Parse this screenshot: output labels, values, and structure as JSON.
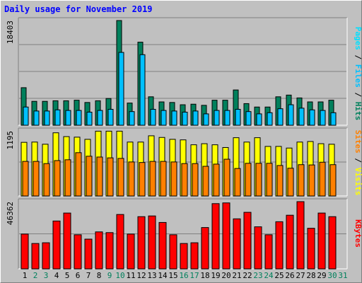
{
  "title": "Daily usage for November 2019",
  "colors": {
    "title": "#0000ff",
    "hits": "#00805c",
    "files": "#00c0ff",
    "pages": "#00e0ff",
    "visits": "#ffff00",
    "sites": "#ff8000",
    "kbytes": "#ff0000",
    "weekend_day": "#00805c",
    "weekday": "#000000"
  },
  "chart_data": [
    {
      "type": "bar",
      "title": "Pages / Files / Hits",
      "legend": [
        {
          "name": "Pages",
          "color": "#00e0ff"
        },
        {
          "name": "Files",
          "color": "#00c0ff"
        },
        {
          "name": "Hits",
          "color": "#00805c"
        }
      ],
      "ymax_label": "18403",
      "ylim": [
        0,
        18403
      ],
      "categories": [
        "1",
        "2",
        "3",
        "4",
        "5",
        "6",
        "7",
        "8",
        "9",
        "10",
        "11",
        "12",
        "13",
        "14",
        "15",
        "16",
        "17",
        "18",
        "19",
        "20",
        "21",
        "22",
        "23",
        "24",
        "25",
        "26",
        "27",
        "28",
        "29",
        "30",
        "31"
      ],
      "series": [
        {
          "name": "Hits",
          "values": [
            6600,
            4200,
            4200,
            4300,
            4300,
            4400,
            4000,
            4300,
            4700,
            18403,
            3900,
            14600,
            5000,
            4100,
            4000,
            3600,
            3700,
            3500,
            4400,
            4400,
            6200,
            3800,
            3200,
            3200,
            5000,
            5300,
            4800,
            4100,
            4100,
            4400,
            0
          ]
        },
        {
          "name": "Files",
          "values": [
            3200,
            2500,
            2500,
            2700,
            2600,
            2600,
            2300,
            2600,
            2800,
            12800,
            2400,
            12400,
            2800,
            2600,
            2500,
            2300,
            2500,
            2000,
            2600,
            2600,
            2800,
            2400,
            2000,
            2200,
            2900,
            3600,
            3000,
            2700,
            2600,
            2200,
            0
          ]
        }
      ]
    },
    {
      "type": "bar",
      "title": "Sites / Visits",
      "legend": [
        {
          "name": "Sites",
          "color": "#ff8000"
        },
        {
          "name": "Visits",
          "color": "#ffff00"
        }
      ],
      "ymax_label": "1195",
      "ylim": [
        0,
        1195
      ],
      "categories": [
        "1",
        "2",
        "3",
        "4",
        "5",
        "6",
        "7",
        "8",
        "9",
        "10",
        "11",
        "12",
        "13",
        "14",
        "15",
        "16",
        "17",
        "18",
        "19",
        "20",
        "21",
        "22",
        "23",
        "24",
        "25",
        "26",
        "27",
        "28",
        "29",
        "30",
        "31"
      ],
      "series": [
        {
          "name": "Visits",
          "values": [
            985,
            990,
            950,
            1160,
            1090,
            1080,
            1040,
            1190,
            1190,
            1190,
            990,
            990,
            1105,
            1075,
            1040,
            1030,
            940,
            960,
            940,
            890,
            1070,
            990,
            1070,
            910,
            910,
            880,
            990,
            1000,
            960,
            950,
            0
          ]
        },
        {
          "name": "Sites",
          "values": [
            635,
            635,
            595,
            650,
            665,
            795,
            730,
            715,
            700,
            690,
            625,
            615,
            635,
            635,
            625,
            595,
            595,
            545,
            585,
            675,
            505,
            600,
            600,
            600,
            560,
            510,
            575,
            570,
            620,
            575,
            0
          ]
        }
      ]
    },
    {
      "type": "bar",
      "title": "KBytes",
      "legend": [
        {
          "name": "KBytes",
          "color": "#ff0000"
        }
      ],
      "ymax_label": "46362",
      "ylim": [
        0,
        46362
      ],
      "categories": [
        "1",
        "2",
        "3",
        "4",
        "5",
        "6",
        "7",
        "8",
        "9",
        "10",
        "11",
        "12",
        "13",
        "14",
        "15",
        "16",
        "17",
        "18",
        "19",
        "20",
        "21",
        "22",
        "23",
        "24",
        "25",
        "26",
        "27",
        "28",
        "29",
        "30",
        "31"
      ],
      "series": [
        {
          "name": "KBytes",
          "values": [
            24000,
            17500,
            18000,
            33000,
            38500,
            23500,
            20500,
            25500,
            25000,
            37500,
            24000,
            36000,
            36500,
            32000,
            23500,
            17500,
            18000,
            28500,
            45000,
            45500,
            34500,
            39000,
            29000,
            23500,
            32500,
            37000,
            46362,
            28000,
            38500,
            36000,
            0
          ]
        }
      ]
    }
  ]
}
